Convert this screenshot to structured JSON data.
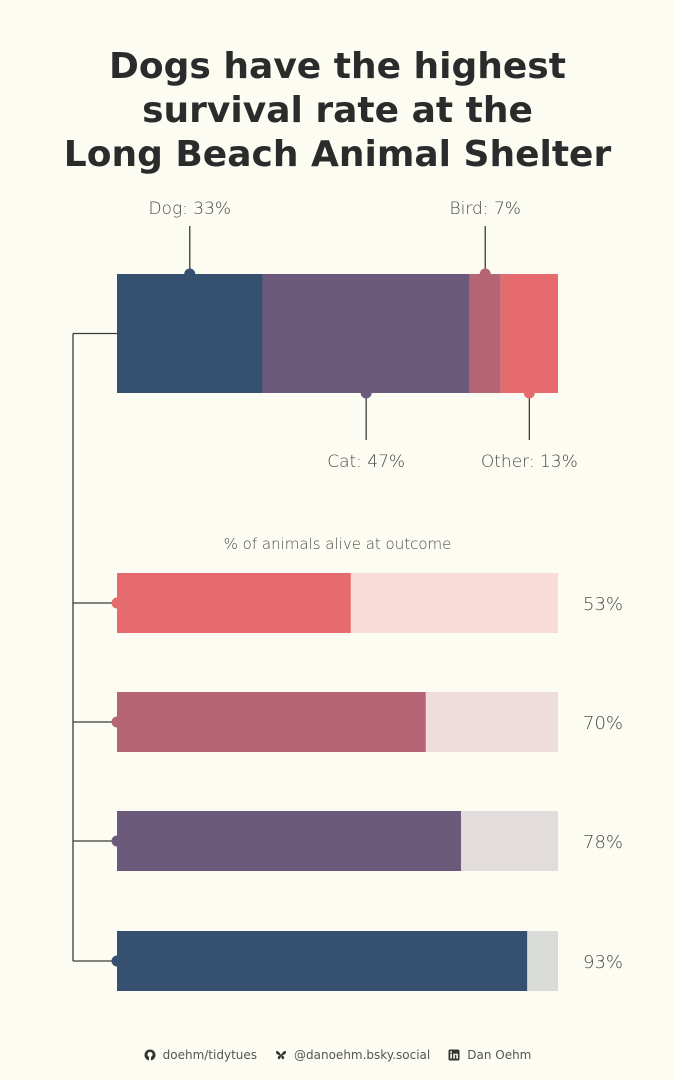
{
  "chart_data": {
    "type": "bar",
    "title_lines": [
      "Dogs have the highest",
      "survival rate at the",
      "Long Beach Animal Shelter"
    ],
    "composition": {
      "segments": [
        {
          "name": "Dog",
          "value": 33,
          "label": "Dog: 33%",
          "color": "#36506f",
          "label_side": "top"
        },
        {
          "name": "Cat",
          "value": 47,
          "label": "Cat: 47%",
          "color": "#6c5a7c",
          "label_side": "bottom"
        },
        {
          "name": "Bird",
          "value": 7,
          "label": "Bird: 7%",
          "color": "#b56576",
          "label_side": "top"
        },
        {
          "name": "Other",
          "value": 13,
          "label": "Other: 13%",
          "color": "#e56b6f",
          "label_side": "bottom"
        }
      ]
    },
    "survival": {
      "subtitle": "% of animals alive at outcome",
      "xlim": [
        0,
        100
      ],
      "bars": [
        {
          "name": "Other",
          "value": 53,
          "label": "53%",
          "color": "#e56b6f",
          "bg": "#f9dcd8"
        },
        {
          "name": "Bird",
          "value": 70,
          "label": "70%",
          "color": "#b56576",
          "bg": "#efdddd"
        },
        {
          "name": "Cat",
          "value": 78,
          "label": "78%",
          "color": "#6c5a7c",
          "bg": "#e2dcdc"
        },
        {
          "name": "Dog",
          "value": 93,
          "label": "93%",
          "color": "#36506f",
          "bg": "#d9dbd9"
        }
      ]
    }
  },
  "footer": {
    "github": "doehm/tidytues",
    "bluesky": "@danoehm.bsky.social",
    "linkedin": "Dan Oehm",
    "icons": [
      "github-icon",
      "bluesky-icon",
      "linkedin-icon"
    ]
  }
}
